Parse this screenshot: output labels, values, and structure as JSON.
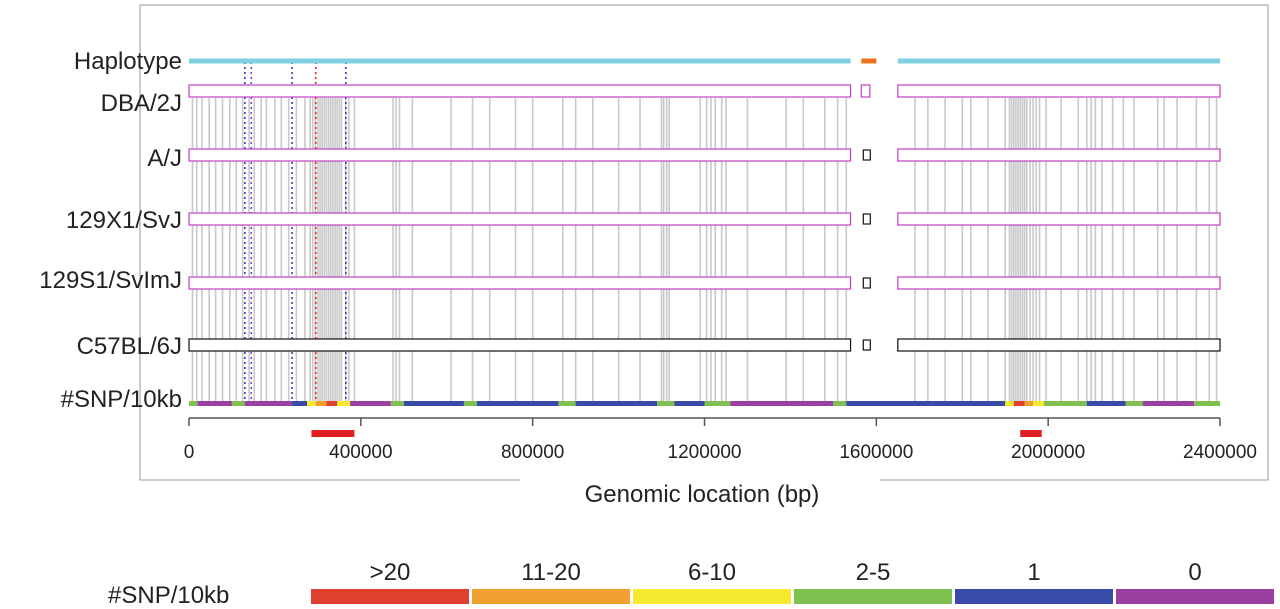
{
  "chart_data": {
    "type": "haplotype-snp-map",
    "xlabel": "Genomic location (bp)",
    "xlim": [
      0,
      2400000
    ],
    "x_ticks": [
      0,
      400000,
      800000,
      1200000,
      1600000,
      2000000,
      2400000
    ],
    "x_tick_labels": [
      "0",
      "400000",
      "800000",
      "1200000",
      "1600000",
      "2000000",
      "2400000"
    ],
    "haplotype_label": "Haplotype",
    "snp_track_label": "#SNP/10kb",
    "strains": [
      {
        "name": "DBA/2J",
        "color": "#c040c0"
      },
      {
        "name": "A/J",
        "color": "#c040c0"
      },
      {
        "name": "129X1/SvJ",
        "color": "#c040c0"
      },
      {
        "name": "129S1/SvImJ",
        "color": "#c040c0"
      },
      {
        "name": "C57BL/6J",
        "color": "#111111"
      }
    ],
    "block_segments": [
      [
        0,
        1540000
      ],
      [
        1565000,
        1585000
      ],
      [
        1650000,
        2400000
      ]
    ],
    "haplotype_segments": [
      {
        "start": 0,
        "end": 1540000,
        "color": "#7fd0e0"
      },
      {
        "start": 1565000,
        "end": 1600000,
        "color": "#f07020"
      },
      {
        "start": 1650000,
        "end": 2400000,
        "color": "#7fd0e0"
      }
    ],
    "snp_positions": [
      8000,
      18000,
      30000,
      47000,
      62000,
      78000,
      95000,
      110000,
      125000,
      140000,
      152000,
      168000,
      180000,
      200000,
      215000,
      232000,
      250000,
      270000,
      282000,
      288000,
      294000,
      300000,
      305000,
      310000,
      315000,
      320000,
      325000,
      330000,
      335000,
      340000,
      345000,
      350000,
      355000,
      365000,
      372000,
      385000,
      475000,
      482000,
      490000,
      520000,
      610000,
      660000,
      700000,
      760000,
      800000,
      870000,
      900000,
      940000,
      1000000,
      1050000,
      1100000,
      1105000,
      1112000,
      1118000,
      1190000,
      1205000,
      1215000,
      1225000,
      1240000,
      1250000,
      1300000,
      1390000,
      1430000,
      1480000,
      1510000,
      1530000,
      1690000,
      1720000,
      1760000,
      1800000,
      1820000,
      1860000,
      1900000,
      1910000,
      1915000,
      1920000,
      1925000,
      1930000,
      1935000,
      1940000,
      1945000,
      1950000,
      1958000,
      1965000,
      1972000,
      1980000,
      1995000,
      2030000,
      2070000,
      2090000,
      2100000,
      2110000,
      2125000,
      2150000,
      2175000,
      2200000,
      2255000,
      2270000,
      2300000,
      2345000,
      2375000,
      2392000
    ],
    "marker_lines": [
      {
        "x": 130000,
        "color": "#3040c0"
      },
      {
        "x": 145000,
        "color": "#8040c0"
      },
      {
        "x": 240000,
        "color": "#3040c0"
      },
      {
        "x": 295000,
        "color": "#e02020"
      },
      {
        "x": 365000,
        "color": "#3040c0"
      }
    ],
    "snp_density_segments": [
      {
        "start": 0,
        "end": 20000,
        "cat": "2-5"
      },
      {
        "start": 20000,
        "end": 100000,
        "cat": "0"
      },
      {
        "start": 100000,
        "end": 130000,
        "cat": "2-5"
      },
      {
        "start": 130000,
        "end": 240000,
        "cat": "0"
      },
      {
        "start": 240000,
        "end": 275000,
        "cat": "1"
      },
      {
        "start": 275000,
        "end": 295000,
        "cat": "6-10"
      },
      {
        "start": 295000,
        "end": 320000,
        "cat": "11-20"
      },
      {
        "start": 320000,
        "end": 345000,
        "cat": ">20"
      },
      {
        "start": 345000,
        "end": 375000,
        "cat": "6-10"
      },
      {
        "start": 375000,
        "end": 470000,
        "cat": "0"
      },
      {
        "start": 470000,
        "end": 500000,
        "cat": "2-5"
      },
      {
        "start": 500000,
        "end": 640000,
        "cat": "1"
      },
      {
        "start": 640000,
        "end": 670000,
        "cat": "2-5"
      },
      {
        "start": 670000,
        "end": 860000,
        "cat": "1"
      },
      {
        "start": 860000,
        "end": 900000,
        "cat": "2-5"
      },
      {
        "start": 900000,
        "end": 1090000,
        "cat": "1"
      },
      {
        "start": 1090000,
        "end": 1130000,
        "cat": "2-5"
      },
      {
        "start": 1130000,
        "end": 1200000,
        "cat": "1"
      },
      {
        "start": 1200000,
        "end": 1260000,
        "cat": "2-5"
      },
      {
        "start": 1260000,
        "end": 1500000,
        "cat": "0"
      },
      {
        "start": 1500000,
        "end": 1530000,
        "cat": "2-5"
      },
      {
        "start": 1530000,
        "end": 1900000,
        "cat": "1"
      },
      {
        "start": 1900000,
        "end": 1920000,
        "cat": "6-10"
      },
      {
        "start": 1920000,
        "end": 1945000,
        "cat": ">20"
      },
      {
        "start": 1945000,
        "end": 1965000,
        "cat": "11-20"
      },
      {
        "start": 1965000,
        "end": 1990000,
        "cat": "6-10"
      },
      {
        "start": 1990000,
        "end": 2090000,
        "cat": "2-5"
      },
      {
        "start": 2090000,
        "end": 2180000,
        "cat": "1"
      },
      {
        "start": 2180000,
        "end": 2220000,
        "cat": "2-5"
      },
      {
        "start": 2220000,
        "end": 2340000,
        "cat": "0"
      },
      {
        "start": 2340000,
        "end": 2400000,
        "cat": "2-5"
      }
    ],
    "highlight_regions": [
      {
        "start": 285000,
        "end": 385000,
        "color": "#e02020"
      },
      {
        "start": 1935000,
        "end": 1985000,
        "color": "#e02020"
      }
    ],
    "legend": {
      "title": "#SNP/10kb",
      "items": [
        {
          "label": ">20",
          "color": "#e04030"
        },
        {
          "label": "11-20",
          "color": "#f0a030"
        },
        {
          "label": "6-10",
          "color": "#f5ea30"
        },
        {
          "label": "2-5",
          "color": "#80c050"
        },
        {
          "label": "1",
          "color": "#3a4aa8"
        },
        {
          "label": "0",
          "color": "#9a40a0"
        }
      ]
    }
  }
}
